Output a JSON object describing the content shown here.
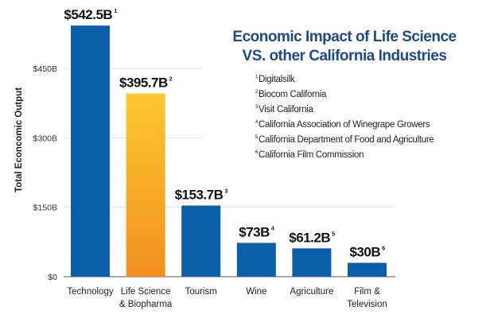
{
  "chart_data": {
    "type": "bar",
    "title": "Economic Impact of Life Science VS. other California Industries",
    "title_lines": [
      "Economic Impact of Life Science",
      "VS. other California Industries"
    ],
    "ylabel": "Total Econcomic Output",
    "xlabel": "",
    "ylim": [
      0,
      600
    ],
    "yticks": [
      0,
      150,
      300,
      450
    ],
    "ytick_labels": [
      "$0",
      "$150B",
      "$300B",
      "$450B"
    ],
    "grid": true,
    "categories": [
      [
        "Technology"
      ],
      [
        "Life Science",
        "& Biopharma"
      ],
      [
        "Tourism"
      ],
      [
        "Wine"
      ],
      [
        "Agriculture"
      ],
      [
        "Film &",
        "Television"
      ]
    ],
    "values": [
      542.5,
      395.7,
      153.7,
      73,
      61.2,
      30
    ],
    "value_labels": [
      "$542.5B",
      "$395.7B",
      "$153.7B",
      "$73B",
      "$61.2B",
      "$30B"
    ],
    "footnotes": [
      "1",
      "2",
      "3",
      "4",
      "5",
      "6"
    ],
    "highlight_index": 1,
    "colors": {
      "bar": "#0a5fa8",
      "highlight_top": "#fcc830",
      "highlight_bottom": "#f39020",
      "title": "#1f4a88"
    },
    "sources": [
      {
        "n": "1",
        "text": "Digitalsilk"
      },
      {
        "n": "2",
        "text": "Biocom California"
      },
      {
        "n": "3",
        "text": "Visit California"
      },
      {
        "n": "4",
        "text": "California Association of Winegrape Growers"
      },
      {
        "n": "5",
        "text": "California Department of Food and Agriculture"
      },
      {
        "n": "6",
        "text": "California Film Commission"
      }
    ]
  }
}
